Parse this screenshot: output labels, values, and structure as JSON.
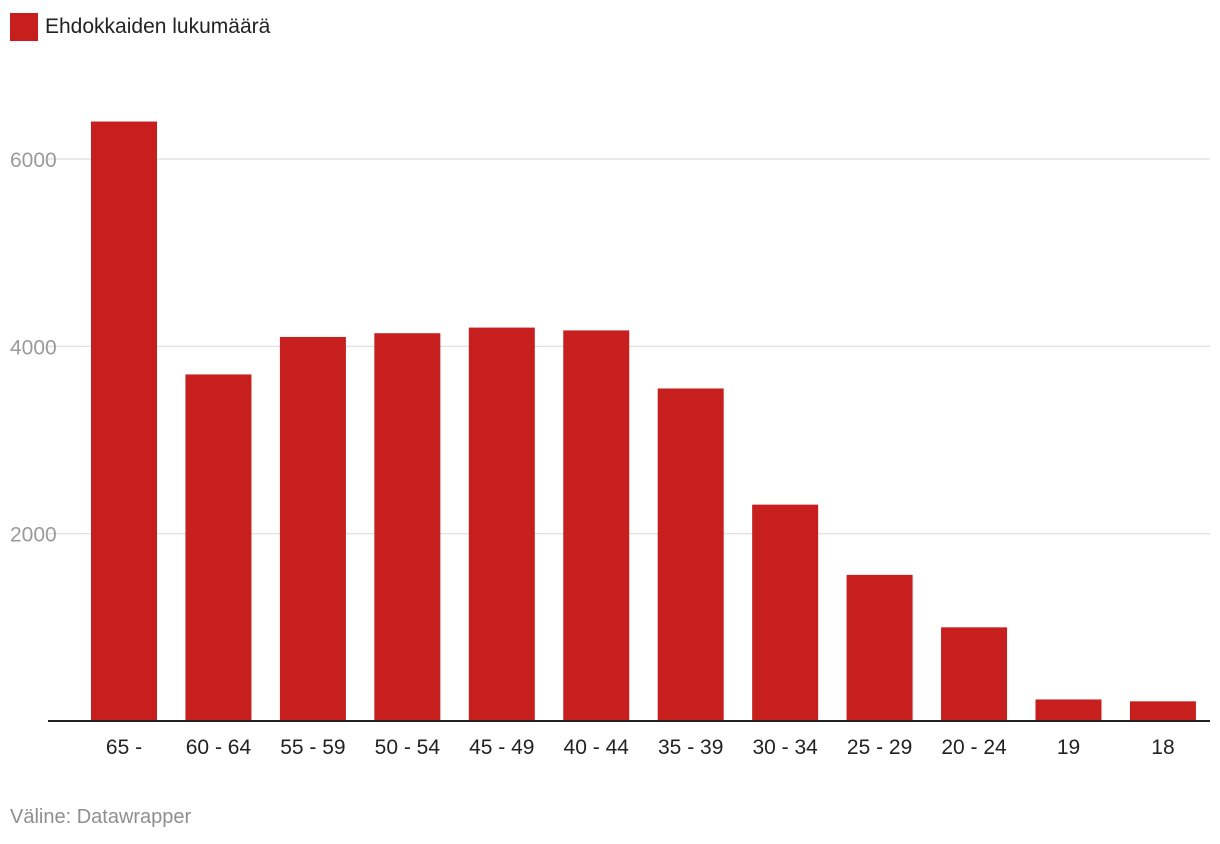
{
  "legend": {
    "label": "Ehdokkaiden lukumäärä"
  },
  "source": "Väline: Datawrapper",
  "chart_data": {
    "type": "bar",
    "title": "",
    "xlabel": "",
    "ylabel": "",
    "categories": [
      "65 -",
      "60 - 64",
      "55 - 59",
      "50 - 54",
      "45 - 49",
      "40 - 44",
      "35 - 39",
      "30 - 34",
      "25 - 29",
      "20 - 24",
      "19",
      "18"
    ],
    "series": [
      {
        "name": "Ehdokkaiden lukumäärä",
        "values": [
          6400,
          3700,
          4100,
          4140,
          4200,
          4170,
          3550,
          2310,
          1560,
          1000,
          230,
          210
        ],
        "color": "#c71e1e"
      }
    ],
    "ylim": [
      0,
      6700
    ],
    "yticks": [
      2000,
      4000,
      6000
    ],
    "grid": true,
    "legend_position": "top-left"
  }
}
